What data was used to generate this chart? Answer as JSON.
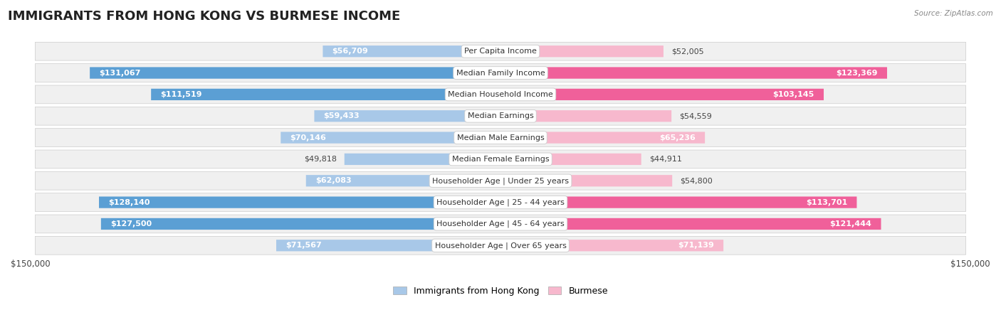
{
  "title": "IMMIGRANTS FROM HONG KONG VS BURMESE INCOME",
  "source": "Source: ZipAtlas.com",
  "categories": [
    "Per Capita Income",
    "Median Family Income",
    "Median Household Income",
    "Median Earnings",
    "Median Male Earnings",
    "Median Female Earnings",
    "Householder Age | Under 25 years",
    "Householder Age | 25 - 44 years",
    "Householder Age | 45 - 64 years",
    "Householder Age | Over 65 years"
  ],
  "hk_values": [
    56709,
    131067,
    111519,
    59433,
    70146,
    49818,
    62083,
    128140,
    127500,
    71567
  ],
  "burmese_values": [
    52005,
    123369,
    103145,
    54559,
    65236,
    44911,
    54800,
    113701,
    121444,
    71139
  ],
  "hk_labels": [
    "$56,709",
    "$131,067",
    "$111,519",
    "$59,433",
    "$70,146",
    "$49,818",
    "$62,083",
    "$128,140",
    "$127,500",
    "$71,567"
  ],
  "burmese_labels": [
    "$52,005",
    "$123,369",
    "$103,145",
    "$54,559",
    "$65,236",
    "$44,911",
    "$54,800",
    "$113,701",
    "$121,444",
    "$71,139"
  ],
  "hk_color_light": "#a8c8e8",
  "hk_color_dark": "#5b9fd4",
  "burmese_color_light": "#f7b8cd",
  "burmese_color_dark": "#f0609a",
  "max_value": 150000,
  "dark_threshold": 100000,
  "background_color": "#ffffff",
  "row_bg": "#f0f0f0",
  "title_fontsize": 13,
  "label_fontsize": 8,
  "category_fontsize": 8,
  "axis_fontsize": 8.5,
  "legend_fontsize": 9
}
